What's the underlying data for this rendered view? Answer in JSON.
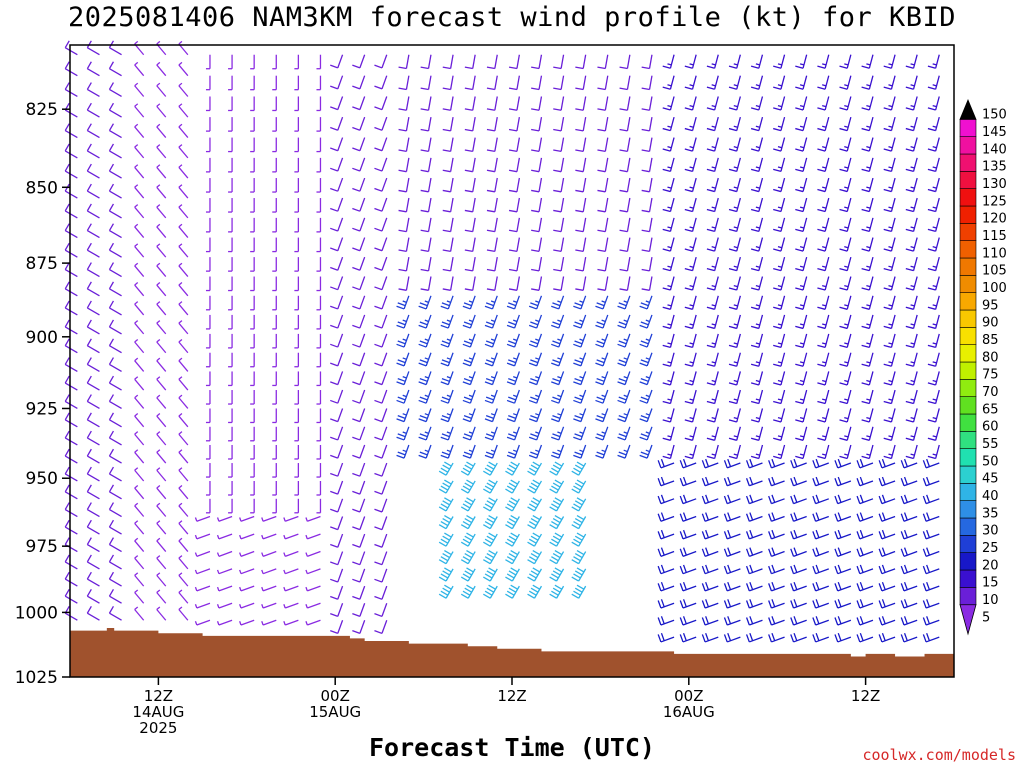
{
  "title": "2025081406 NAM3KM forecast wind profile (kt) for KBID",
  "credit": "coolwx.com/models",
  "chart_data": {
    "type": "wind-barb time-height profile",
    "title": "2025081406 NAM3KM forecast wind profile (kt) for KBID",
    "xlabel": "Forecast Time (UTC)",
    "ylabel": "",
    "y_ticks": [
      825,
      850,
      875,
      900,
      925,
      950,
      975,
      1000,
      1025
    ],
    "y_range_hpa": [
      1025,
      805
    ],
    "x_ticks": [
      {
        "hour": 6,
        "lines": [
          "12Z",
          "14AUG",
          "2025"
        ]
      },
      {
        "hour": 18,
        "lines": [
          "00Z",
          "15AUG"
        ]
      },
      {
        "hour": 30,
        "lines": [
          "12Z"
        ]
      },
      {
        "hour": 42,
        "lines": [
          "00Z",
          "16AUG"
        ]
      },
      {
        "hour": 54,
        "lines": [
          "12Z"
        ]
      }
    ],
    "x_range_hours": [
      0,
      60
    ],
    "units": "kt",
    "colorbar": {
      "values": [
        5,
        10,
        15,
        20,
        25,
        30,
        35,
        40,
        45,
        50,
        55,
        60,
        65,
        70,
        75,
        80,
        85,
        90,
        95,
        100,
        105,
        110,
        115,
        120,
        125,
        130,
        135,
        140,
        145,
        150
      ],
      "colors": [
        "#8a2be2",
        "#6a1fd8",
        "#3a10d0",
        "#1818c8",
        "#1f3fd6",
        "#2568e0",
        "#2e8fe6",
        "#2fb4e6",
        "#2cd0d0",
        "#20e0b0",
        "#30e080",
        "#40e040",
        "#60e020",
        "#90ec10",
        "#c0f000",
        "#e8f000",
        "#f8e000",
        "#f8c800",
        "#f8a800",
        "#f08c00",
        "#f07800",
        "#f06000",
        "#f04000",
        "#f02000",
        "#f01010",
        "#f01040",
        "#f01070",
        "#f010a0",
        "#f010d0",
        "#000000"
      ]
    },
    "terrain_color": "#a0522d",
    "surface_pressure_hpa": [
      [
        0,
        1007
      ],
      [
        2.5,
        1006
      ],
      [
        3,
        1007
      ],
      [
        6,
        1008
      ],
      [
        9,
        1009
      ],
      [
        18,
        1009
      ],
      [
        19,
        1010
      ],
      [
        20,
        1011
      ],
      [
        23,
        1012
      ],
      [
        27,
        1013
      ],
      [
        29,
        1014
      ],
      [
        32,
        1015
      ],
      [
        40,
        1015
      ],
      [
        41,
        1016
      ],
      [
        48,
        1016
      ],
      [
        52,
        1016
      ],
      [
        53,
        1017
      ],
      [
        54,
        1016
      ],
      [
        56,
        1017
      ],
      [
        58,
        1016
      ],
      [
        60,
        1016
      ]
    ],
    "wind_profile_samples": [
      {
        "hours": [
          0,
          5
        ],
        "hpa": [
          805,
          1005
        ],
        "dir_deg": 300,
        "kt": 10
      },
      {
        "hours": [
          5,
          9
        ],
        "hpa": [
          805,
          1005
        ],
        "dir_deg": 320,
        "kt": 5
      },
      {
        "hours": [
          9,
          18
        ],
        "hpa": [
          805,
          960
        ],
        "dir_deg": 180,
        "kt": 5
      },
      {
        "hours": [
          9,
          18
        ],
        "hpa": [
          960,
          1005
        ],
        "dir_deg": 250,
        "kt": 5
      },
      {
        "hours": [
          18,
          22
        ],
        "hpa": [
          805,
          1010
        ],
        "dir_deg": 200,
        "kt": 10
      },
      {
        "hours": [
          22,
          40
        ],
        "hpa": [
          805,
          880
        ],
        "dir_deg": 190,
        "kt": 10
      },
      {
        "hours": [
          22,
          40
        ],
        "hpa": [
          880,
          940
        ],
        "dir_deg": 200,
        "kt": 25
      },
      {
        "hours": [
          26,
          36
        ],
        "hpa": [
          940,
          990
        ],
        "dir_deg": 210,
        "kt": 40
      },
      {
        "hours": [
          40,
          60
        ],
        "hpa": [
          805,
          940
        ],
        "dir_deg": 195,
        "kt": 15
      },
      {
        "hours": [
          40,
          60
        ],
        "hpa": [
          940,
          1015
        ],
        "dir_deg": 250,
        "kt": 20
      }
    ]
  }
}
